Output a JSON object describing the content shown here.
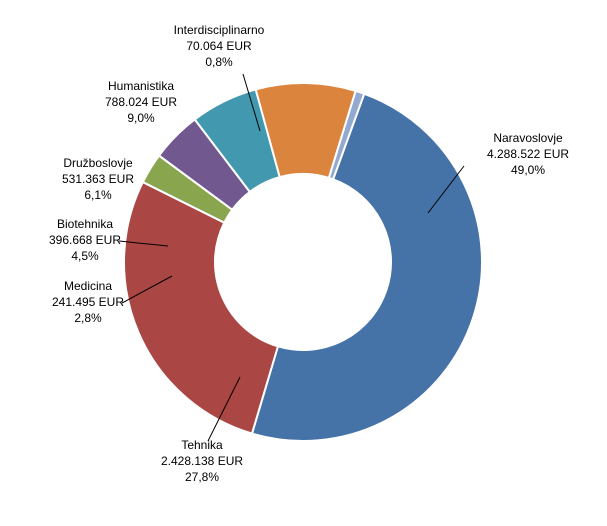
{
  "chart_data": {
    "type": "pie",
    "style": "donut",
    "title": "",
    "currency": "EUR",
    "slices": [
      {
        "category": "Naravoslovje",
        "amount_label": "4.288.522 EUR",
        "percent_label": "49,0%",
        "value": 4288522,
        "color": "#4572a7"
      },
      {
        "category": "Tehnika",
        "amount_label": "2.428.138 EUR",
        "percent_label": "27,8%",
        "value": 2428138,
        "color": "#aa4643"
      },
      {
        "category": "Medicina",
        "amount_label": "241.495 EUR",
        "percent_label": "2,8%",
        "value": 241495,
        "color": "#89a54e"
      },
      {
        "category": "Biotehnika",
        "amount_label": "396.668 EUR",
        "percent_label": "4,5%",
        "value": 396668,
        "color": "#71588f"
      },
      {
        "category": "Družboslovje",
        "amount_label": "531.363 EUR",
        "percent_label": "6,1%",
        "value": 531363,
        "color": "#4198af"
      },
      {
        "category": "Humanistika",
        "amount_label": "788.024 EUR",
        "percent_label": "9,0%",
        "value": 788024,
        "color": "#db843d"
      },
      {
        "category": "Interdisciplinarno",
        "amount_label": "70.064 EUR",
        "percent_label": "0,8%",
        "value": 70064,
        "color": "#93a9cf"
      }
    ]
  }
}
